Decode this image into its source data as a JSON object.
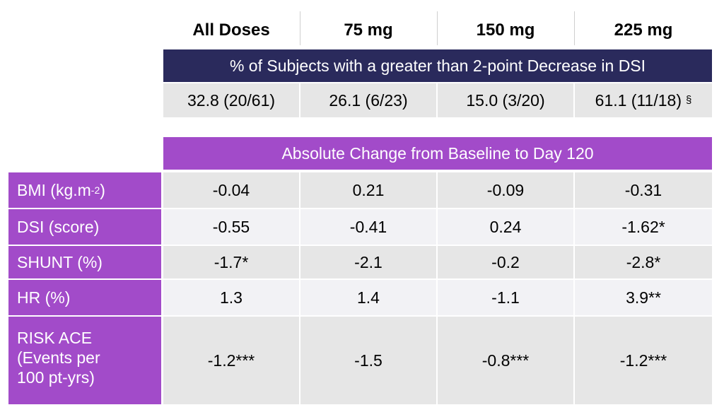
{
  "columns": [
    "All Doses",
    "75 mg",
    "150 mg",
    "225 mg"
  ],
  "banner_top": "% of Subjects with a greater than 2-point Decrease in DSI",
  "top_values": [
    "32.8 (20/61)",
    "26.1 (6/23)",
    "15.0 (3/20)",
    "61.1 (11/18)"
  ],
  "top_last_mark": "§",
  "banner_bottom": "Absolute Change from Baseline to Day 120",
  "rows": [
    {
      "label": "BMI (kg.m",
      "label_sup": "-2",
      "label_tail": ")",
      "values": [
        "-0.04",
        "0.21",
        "-0.09",
        "-0.31"
      ]
    },
    {
      "label": "DSI (score)",
      "values": [
        "-0.55",
        "-0.41",
        "0.24",
        "-1.62*"
      ]
    },
    {
      "label": "SHUNT (%)",
      "values": [
        "-1.7*",
        "-2.1",
        "-0.2",
        "-2.8*"
      ]
    },
    {
      "label": "HR (%)",
      "values": [
        "1.3",
        "1.4",
        "-1.1",
        "3.9**"
      ]
    },
    {
      "label_lines": [
        "RISK ACE",
        "(Events per",
        "100 pt-yrs)"
      ],
      "values": [
        "-1.2***",
        "-1.5",
        "-0.8***",
        "-1.2***"
      ]
    }
  ],
  "colors": {
    "navy": "#2a2a5c",
    "purple": "#a24bc9",
    "cell_gray": "#e6e6e6",
    "cell_light": "#f2f2f5"
  }
}
